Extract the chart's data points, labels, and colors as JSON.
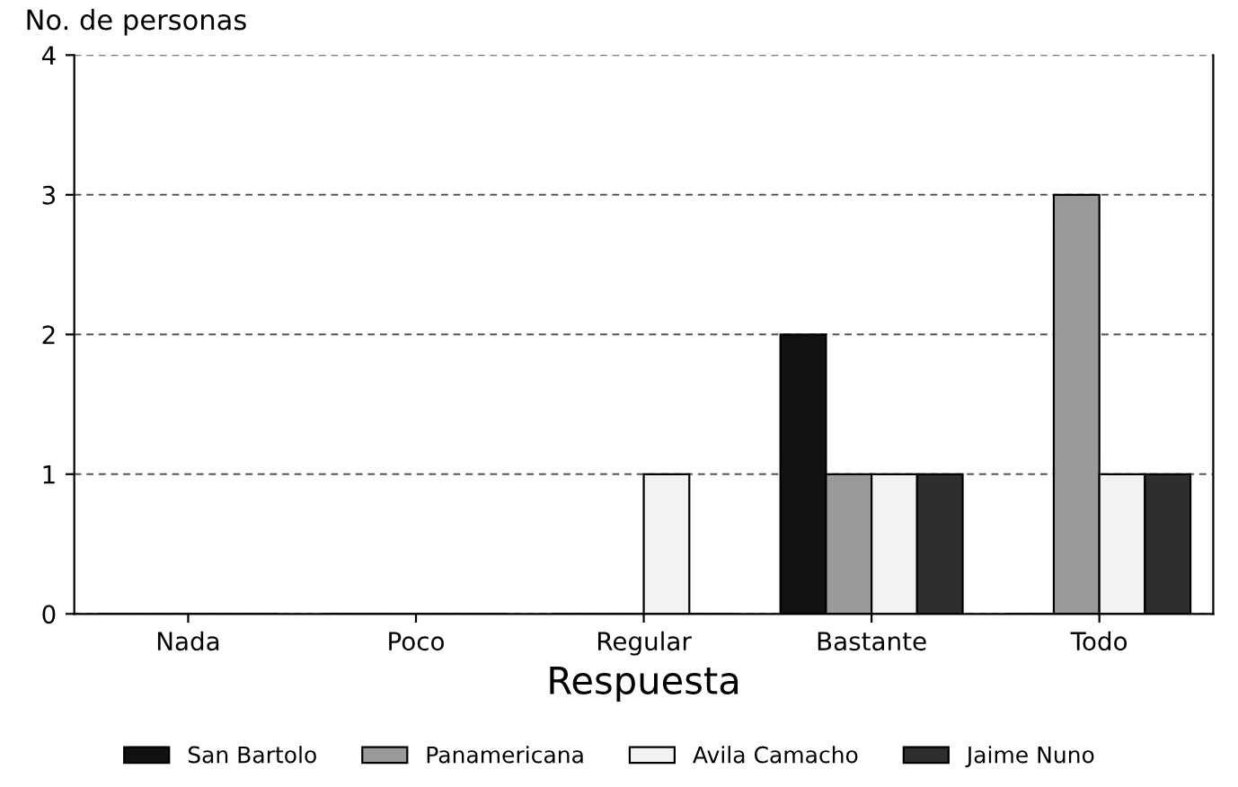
{
  "chart_data": {
    "type": "bar",
    "xlabel": "Respuesta",
    "ylabel": "No. de personas",
    "categories": [
      "Nada",
      "Poco",
      "Regular",
      "Bastante",
      "Todo"
    ],
    "series": [
      {
        "name": "San Bartolo",
        "color": "#111111",
        "values": [
          0,
          0,
          0,
          2,
          0
        ]
      },
      {
        "name": "Panamericana",
        "color": "#9a9a9a",
        "values": [
          0,
          0,
          0,
          1,
          3
        ]
      },
      {
        "name": "Avila Camacho",
        "color": "#f2f2f2",
        "values": [
          0,
          0,
          1,
          1,
          1
        ]
      },
      {
        "name": "Jaime Nuno",
        "color": "#2e2e2e",
        "values": [
          0,
          0,
          0,
          1,
          1
        ]
      }
    ],
    "ylim": [
      0,
      4
    ],
    "yticks": [
      0,
      1,
      2,
      3,
      4
    ],
    "grid": "y",
    "legend": "bottom"
  }
}
